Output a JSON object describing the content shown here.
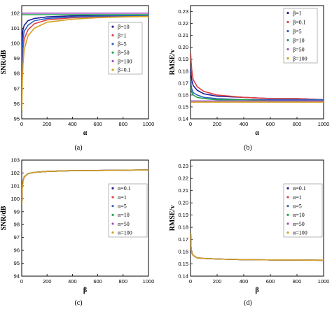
{
  "chart_data": [
    {
      "type": "line",
      "panel_label": "(a)",
      "xlabel": "α",
      "ylabel": "SNR/dB",
      "xlim": [
        0,
        1000
      ],
      "ylim": [
        95,
        102.5
      ],
      "xticks": [
        "0",
        "200",
        "400",
        "600",
        "800",
        "1000"
      ],
      "yticks": [
        "95",
        "96",
        "97",
        "98",
        "99",
        "100",
        "101",
        "102"
      ],
      "legend_position": "right",
      "series": [
        {
          "name": "β=10",
          "color": "#1f1f9e",
          "x": [
            1,
            5,
            10,
            20,
            50,
            100,
            200,
            400,
            600,
            800,
            1000
          ],
          "y": [
            99.4,
            100.5,
            100.9,
            101.2,
            101.5,
            101.65,
            101.75,
            101.82,
            101.85,
            101.87,
            101.88
          ]
        },
        {
          "name": "β=1",
          "color": "#e04040",
          "x": [
            1,
            5,
            10,
            20,
            50,
            100,
            200,
            400,
            600,
            800,
            1000
          ],
          "y": [
            96.8,
            98.6,
            99.6,
            100.3,
            100.9,
            101.3,
            101.55,
            101.7,
            101.77,
            101.8,
            101.82
          ]
        },
        {
          "name": "β=5",
          "color": "#3060c0",
          "x": [
            1,
            5,
            10,
            20,
            50,
            100,
            200,
            400,
            600,
            800,
            1000
          ],
          "y": [
            98.2,
            99.6,
            100.3,
            100.8,
            101.2,
            101.5,
            101.65,
            101.75,
            101.8,
            101.83,
            101.85
          ]
        },
        {
          "name": "β=50",
          "color": "#20a050",
          "x": [
            1,
            5,
            10,
            20,
            50,
            100,
            200,
            400,
            600,
            800,
            1000
          ],
          "y": [
            101.9,
            101.9,
            101.9,
            101.9,
            101.9,
            101.9,
            101.9,
            101.9,
            101.9,
            101.9,
            101.9
          ]
        },
        {
          "name": "β=100",
          "color": "#a050c0",
          "x": [
            1,
            5,
            10,
            20,
            50,
            100,
            200,
            400,
            600,
            800,
            1000
          ],
          "y": [
            102.0,
            102.0,
            102.0,
            102.0,
            102.0,
            102.0,
            102.0,
            102.0,
            102.0,
            102.0,
            102.0
          ]
        },
        {
          "name": "β=0.1",
          "color": "#d4a020",
          "x": [
            1,
            5,
            10,
            20,
            50,
            100,
            200,
            400,
            600,
            800,
            1000
          ],
          "y": [
            95.6,
            97.5,
            98.6,
            99.6,
            100.5,
            101.0,
            101.4,
            101.6,
            101.7,
            101.75,
            101.78
          ]
        }
      ]
    },
    {
      "type": "line",
      "panel_label": "(b)",
      "xlabel": "α",
      "ylabel": "RMSE/v",
      "xlim": [
        0,
        1000
      ],
      "ylim": [
        0.14,
        0.235
      ],
      "xticks": [
        "0",
        "200",
        "400",
        "600",
        "800",
        "1000"
      ],
      "yticks": [
        "0.14",
        "0.15",
        "0.16",
        "0.17",
        "0.18",
        "0.19",
        "0.20",
        "0.21",
        "0.22",
        "0.23"
      ],
      "legend_position": "top-right",
      "series": [
        {
          "name": "β=1",
          "color": "#1f1f9e",
          "x": [
            1,
            5,
            10,
            20,
            50,
            100,
            200,
            400,
            600,
            800,
            1000
          ],
          "y": [
            0.183,
            0.177,
            0.172,
            0.168,
            0.164,
            0.161,
            0.159,
            0.158,
            0.157,
            0.157,
            0.156
          ]
        },
        {
          "name": "β=0.1",
          "color": "#e04040",
          "x": [
            1,
            5,
            10,
            20,
            50,
            100,
            200,
            400,
            600,
            800,
            1000
          ],
          "y": [
            0.195,
            0.188,
            0.18,
            0.173,
            0.167,
            0.163,
            0.16,
            0.158,
            0.157,
            0.157,
            0.156
          ]
        },
        {
          "name": "β=5",
          "color": "#3060c0",
          "x": [
            1,
            5,
            10,
            20,
            50,
            100,
            200,
            400,
            600,
            800,
            1000
          ],
          "y": [
            0.172,
            0.168,
            0.165,
            0.162,
            0.16,
            0.158,
            0.157,
            0.156,
            0.156,
            0.156,
            0.156
          ]
        },
        {
          "name": "β=10",
          "color": "#20a050",
          "x": [
            1,
            5,
            10,
            20,
            50,
            100,
            200,
            400,
            600,
            800,
            1000
          ],
          "y": [
            0.167,
            0.164,
            0.162,
            0.16,
            0.158,
            0.157,
            0.156,
            0.156,
            0.155,
            0.155,
            0.155
          ]
        },
        {
          "name": "β=50",
          "color": "#a050c0",
          "x": [
            1,
            5,
            10,
            20,
            50,
            100,
            200,
            400,
            600,
            800,
            1000
          ],
          "y": [
            0.155,
            0.155,
            0.155,
            0.155,
            0.155,
            0.155,
            0.155,
            0.155,
            0.155,
            0.155,
            0.155
          ]
        },
        {
          "name": "β=100",
          "color": "#d4a020",
          "x": [
            1,
            5,
            10,
            20,
            50,
            100,
            200,
            400,
            600,
            800,
            1000
          ],
          "y": [
            0.154,
            0.154,
            0.154,
            0.154,
            0.154,
            0.154,
            0.154,
            0.154,
            0.154,
            0.154,
            0.154
          ]
        }
      ]
    },
    {
      "type": "line",
      "panel_label": "(c)",
      "xlabel": "β",
      "ylabel": "SNR/dB",
      "xlim": [
        0,
        1000
      ],
      "ylim": [
        94,
        103
      ],
      "xticks": [
        "0",
        "200",
        "400",
        "600",
        "800",
        "1000"
      ],
      "yticks": [
        "94",
        "95",
        "96",
        "97",
        "98",
        "99",
        "100",
        "101",
        "102",
        "103"
      ],
      "legend_position": "right",
      "series": [
        {
          "name": "α=0.1",
          "color": "#1f1f9e",
          "x": [
            1,
            3,
            5,
            10,
            20,
            50,
            100,
            200,
            400,
            600,
            800,
            1000
          ],
          "y": [
            99.6,
            100.6,
            101.0,
            101.4,
            101.7,
            101.95,
            102.05,
            102.12,
            102.18,
            102.2,
            102.22,
            102.24
          ]
        },
        {
          "name": "α=1",
          "color": "#e04040",
          "x": [
            1,
            3,
            5,
            10,
            20,
            50,
            100,
            200,
            400,
            600,
            800,
            1000
          ],
          "y": [
            99.6,
            100.6,
            101.0,
            101.4,
            101.7,
            101.95,
            102.05,
            102.12,
            102.18,
            102.2,
            102.22,
            102.24
          ]
        },
        {
          "name": "α=5",
          "color": "#3060c0",
          "x": [
            1,
            3,
            5,
            10,
            20,
            50,
            100,
            200,
            400,
            600,
            800,
            1000
          ],
          "y": [
            99.6,
            100.6,
            101.0,
            101.4,
            101.7,
            101.95,
            102.05,
            102.12,
            102.18,
            102.2,
            102.22,
            102.24
          ]
        },
        {
          "name": "α=10",
          "color": "#20a050",
          "x": [
            1,
            3,
            5,
            10,
            20,
            50,
            100,
            200,
            400,
            600,
            800,
            1000
          ],
          "y": [
            99.6,
            100.6,
            101.0,
            101.4,
            101.7,
            101.95,
            102.05,
            102.12,
            102.18,
            102.2,
            102.22,
            102.24
          ]
        },
        {
          "name": "α=50",
          "color": "#a050c0",
          "x": [
            1,
            3,
            5,
            10,
            20,
            50,
            100,
            200,
            400,
            600,
            800,
            1000
          ],
          "y": [
            99.6,
            100.6,
            101.0,
            101.4,
            101.7,
            101.95,
            102.05,
            102.12,
            102.18,
            102.2,
            102.22,
            102.24
          ]
        },
        {
          "name": "α=100",
          "color": "#d4a020",
          "x": [
            1,
            3,
            5,
            10,
            20,
            50,
            100,
            200,
            400,
            600,
            800,
            1000
          ],
          "y": [
            99.6,
            100.6,
            101.0,
            101.4,
            101.7,
            101.95,
            102.05,
            102.12,
            102.18,
            102.2,
            102.22,
            102.24
          ]
        }
      ]
    },
    {
      "type": "line",
      "panel_label": "(d)",
      "xlabel": "β",
      "ylabel": "RMSE/v",
      "xlim": [
        0,
        1000
      ],
      "ylim": [
        0.14,
        0.235
      ],
      "xticks": [
        "0",
        "200",
        "400",
        "600",
        "800",
        "1000"
      ],
      "yticks": [
        "0.14",
        "0.15",
        "0.16",
        "0.17",
        "0.18",
        "0.19",
        "0.20",
        "0.21",
        "0.22",
        "0.23"
      ],
      "legend_position": "top-right",
      "series": [
        {
          "name": "α=0.1",
          "color": "#1f1f9e",
          "x": [
            1,
            3,
            5,
            10,
            20,
            50,
            100,
            200,
            400,
            600,
            800,
            1000
          ],
          "y": [
            0.175,
            0.166,
            0.162,
            0.159,
            0.157,
            0.155,
            0.1545,
            0.154,
            0.1535,
            0.1533,
            0.1532,
            0.153
          ]
        },
        {
          "name": "α=1",
          "color": "#e04040",
          "x": [
            1,
            3,
            5,
            10,
            20,
            50,
            100,
            200,
            400,
            600,
            800,
            1000
          ],
          "y": [
            0.175,
            0.166,
            0.162,
            0.159,
            0.157,
            0.155,
            0.1545,
            0.154,
            0.1535,
            0.1533,
            0.1532,
            0.153
          ]
        },
        {
          "name": "α=5",
          "color": "#3060c0",
          "x": [
            1,
            3,
            5,
            10,
            20,
            50,
            100,
            200,
            400,
            600,
            800,
            1000
          ],
          "y": [
            0.175,
            0.166,
            0.162,
            0.159,
            0.157,
            0.155,
            0.1545,
            0.154,
            0.1535,
            0.1533,
            0.1532,
            0.153
          ]
        },
        {
          "name": "α=10",
          "color": "#20a050",
          "x": [
            1,
            3,
            5,
            10,
            20,
            50,
            100,
            200,
            400,
            600,
            800,
            1000
          ],
          "y": [
            0.175,
            0.166,
            0.162,
            0.159,
            0.157,
            0.155,
            0.1545,
            0.154,
            0.1535,
            0.1533,
            0.1532,
            0.153
          ]
        },
        {
          "name": "α=50",
          "color": "#a050c0",
          "x": [
            1,
            3,
            5,
            10,
            20,
            50,
            100,
            200,
            400,
            600,
            800,
            1000
          ],
          "y": [
            0.175,
            0.166,
            0.162,
            0.159,
            0.157,
            0.155,
            0.1545,
            0.154,
            0.1535,
            0.1533,
            0.1532,
            0.153
          ]
        },
        {
          "name": "α=100",
          "color": "#d4a020",
          "x": [
            1,
            3,
            5,
            10,
            20,
            50,
            100,
            200,
            400,
            600,
            800,
            1000
          ],
          "y": [
            0.175,
            0.166,
            0.162,
            0.159,
            0.157,
            0.155,
            0.1545,
            0.154,
            0.1535,
            0.1533,
            0.1532,
            0.153
          ]
        }
      ]
    }
  ]
}
